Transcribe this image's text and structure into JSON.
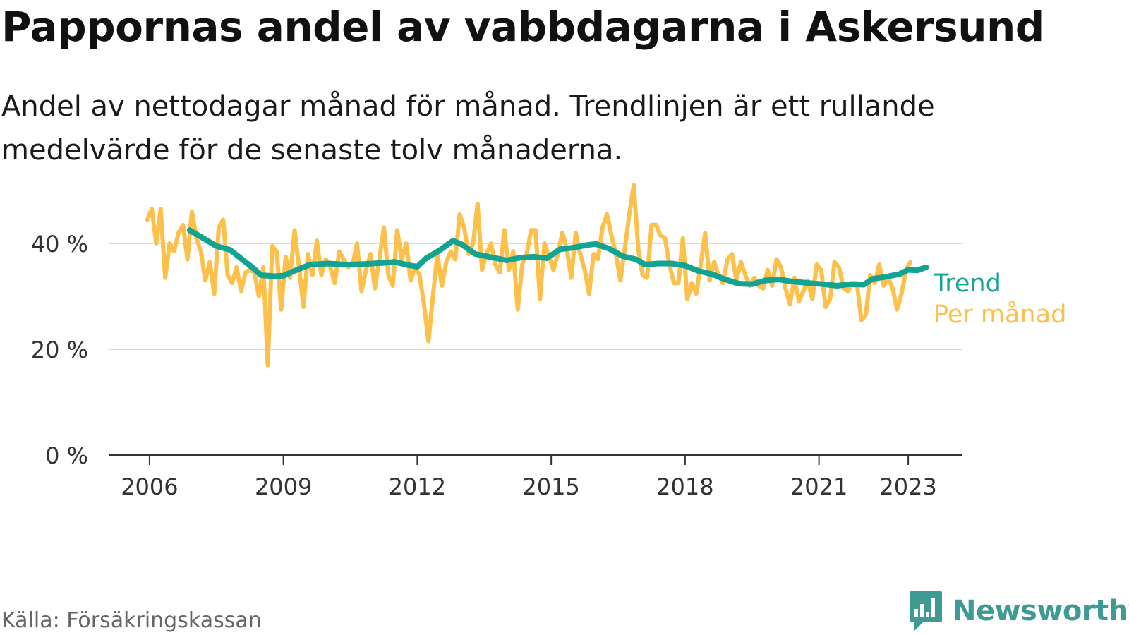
{
  "header": {
    "title": "Pappornas andel av vabbdagarna i Askersund",
    "subtitle": "Andel av nettodagar månad för månad. Trendlinjen är ett rullande medelvärde för de senaste tolv månaderna."
  },
  "footer": {
    "source": "Källa: Försäkringskassan",
    "brand": "Newsworthy",
    "brand_icon": "bar-chart-speech-bubble-icon"
  },
  "colors": {
    "trend": "#12a393",
    "monthly": "#fdc04a",
    "grid": "#d9d9d9",
    "axis": "#333333",
    "brand": "#3f9a93"
  },
  "chart_data": {
    "type": "line",
    "xlim": [
      2005.1,
      2024.2
    ],
    "ylim": [
      0,
      50
    ],
    "y_ticks": [
      {
        "value": 0,
        "label": "0 %"
      },
      {
        "value": 20,
        "label": "20 %"
      },
      {
        "value": 40,
        "label": "40 %"
      }
    ],
    "x_ticks": [
      {
        "value": 2006,
        "label": "2006"
      },
      {
        "value": 2009,
        "label": "2009"
      },
      {
        "value": 2012,
        "label": "2012"
      },
      {
        "value": 2015,
        "label": "2015"
      },
      {
        "value": 2018,
        "label": "2018"
      },
      {
        "value": 2021,
        "label": "2021"
      },
      {
        "value": 2023,
        "label": "2023"
      }
    ],
    "grid": "horizontal",
    "legend": "direct labels at right end of lines",
    "series": [
      {
        "name": "Trend",
        "key": "trend",
        "points": [
          [
            2006.9,
            42.5
          ],
          [
            2007.2,
            41.0
          ],
          [
            2007.5,
            39.5
          ],
          [
            2007.8,
            38.8
          ],
          [
            2008.0,
            37.5
          ],
          [
            2008.3,
            35.5
          ],
          [
            2008.5,
            34.0
          ],
          [
            2008.8,
            33.8
          ],
          [
            2009.0,
            33.9
          ],
          [
            2009.3,
            35.0
          ],
          [
            2009.6,
            36.0
          ],
          [
            2010.0,
            36.2
          ],
          [
            2010.4,
            36.0
          ],
          [
            2010.8,
            36.1
          ],
          [
            2011.2,
            36.3
          ],
          [
            2011.5,
            36.5
          ],
          [
            2011.8,
            35.9
          ],
          [
            2012.0,
            35.6
          ],
          [
            2012.2,
            37.2
          ],
          [
            2012.5,
            38.7
          ],
          [
            2012.8,
            40.5
          ],
          [
            2013.0,
            39.8
          ],
          [
            2013.3,
            38.0
          ],
          [
            2013.6,
            37.5
          ],
          [
            2014.0,
            36.8
          ],
          [
            2014.3,
            37.3
          ],
          [
            2014.6,
            37.5
          ],
          [
            2014.9,
            37.2
          ],
          [
            2015.2,
            38.9
          ],
          [
            2015.5,
            39.2
          ],
          [
            2015.8,
            39.7
          ],
          [
            2016.0,
            39.9
          ],
          [
            2016.3,
            39.0
          ],
          [
            2016.6,
            37.6
          ],
          [
            2016.9,
            37.0
          ],
          [
            2017.1,
            36.0
          ],
          [
            2017.4,
            36.2
          ],
          [
            2017.7,
            36.2
          ],
          [
            2018.0,
            35.8
          ],
          [
            2018.3,
            34.8
          ],
          [
            2018.6,
            34.2
          ],
          [
            2018.9,
            33.2
          ],
          [
            2019.2,
            32.4
          ],
          [
            2019.5,
            32.3
          ],
          [
            2019.8,
            33.0
          ],
          [
            2020.1,
            33.2
          ],
          [
            2020.4,
            32.8
          ],
          [
            2020.8,
            32.5
          ],
          [
            2021.1,
            32.3
          ],
          [
            2021.4,
            32.0
          ],
          [
            2021.7,
            32.3
          ],
          [
            2022.0,
            32.2
          ],
          [
            2022.2,
            33.3
          ],
          [
            2022.5,
            33.7
          ],
          [
            2022.8,
            34.2
          ],
          [
            2023.0,
            35.0
          ],
          [
            2023.2,
            34.9
          ],
          [
            2023.4,
            35.5
          ]
        ]
      },
      {
        "name": "Per månad",
        "key": "monthly",
        "points": [
          [
            2005.95,
            44.5
          ],
          [
            2006.05,
            46.5
          ],
          [
            2006.15,
            40.0
          ],
          [
            2006.25,
            46.5
          ],
          [
            2006.35,
            33.5
          ],
          [
            2006.45,
            40.0
          ],
          [
            2006.55,
            38.5
          ],
          [
            2006.65,
            42.0
          ],
          [
            2006.75,
            43.5
          ],
          [
            2006.85,
            37.0
          ],
          [
            2006.95,
            46.0
          ],
          [
            2007.05,
            41.0
          ],
          [
            2007.15,
            38.5
          ],
          [
            2007.25,
            33.0
          ],
          [
            2007.35,
            36.5
          ],
          [
            2007.45,
            30.5
          ],
          [
            2007.55,
            43.0
          ],
          [
            2007.65,
            44.5
          ],
          [
            2007.75,
            34.0
          ],
          [
            2007.85,
            32.5
          ],
          [
            2007.95,
            35.5
          ],
          [
            2008.05,
            31.0
          ],
          [
            2008.15,
            34.5
          ],
          [
            2008.25,
            35.0
          ],
          [
            2008.35,
            34.5
          ],
          [
            2008.45,
            30.0
          ],
          [
            2008.55,
            35.5
          ],
          [
            2008.65,
            17.0
          ],
          [
            2008.75,
            39.5
          ],
          [
            2008.85,
            38.5
          ],
          [
            2008.95,
            27.5
          ],
          [
            2009.05,
            37.5
          ],
          [
            2009.15,
            33.5
          ],
          [
            2009.25,
            42.5
          ],
          [
            2009.35,
            35.5
          ],
          [
            2009.45,
            28.0
          ],
          [
            2009.55,
            38.0
          ],
          [
            2009.65,
            34.0
          ],
          [
            2009.75,
            40.5
          ],
          [
            2009.85,
            34.0
          ],
          [
            2009.95,
            37.0
          ],
          [
            2010.05,
            35.5
          ],
          [
            2010.15,
            32.5
          ],
          [
            2010.25,
            38.5
          ],
          [
            2010.35,
            37.0
          ],
          [
            2010.45,
            35.5
          ],
          [
            2010.55,
            36.0
          ],
          [
            2010.65,
            40.0
          ],
          [
            2010.75,
            31.0
          ],
          [
            2010.85,
            35.0
          ],
          [
            2010.95,
            38.0
          ],
          [
            2011.05,
            31.5
          ],
          [
            2011.15,
            37.0
          ],
          [
            2011.25,
            43.0
          ],
          [
            2011.35,
            34.0
          ],
          [
            2011.45,
            32.0
          ],
          [
            2011.55,
            42.5
          ],
          [
            2011.65,
            37.0
          ],
          [
            2011.75,
            40.0
          ],
          [
            2011.85,
            33.0
          ],
          [
            2011.95,
            35.5
          ],
          [
            2012.05,
            34.0
          ],
          [
            2012.15,
            28.5
          ],
          [
            2012.25,
            21.5
          ],
          [
            2012.35,
            30.0
          ],
          [
            2012.45,
            38.0
          ],
          [
            2012.55,
            32.0
          ],
          [
            2012.65,
            36.5
          ],
          [
            2012.75,
            38.5
          ],
          [
            2012.85,
            37.0
          ],
          [
            2012.95,
            45.5
          ],
          [
            2013.05,
            43.0
          ],
          [
            2013.15,
            38.0
          ],
          [
            2013.25,
            40.0
          ],
          [
            2013.35,
            47.5
          ],
          [
            2013.45,
            35.0
          ],
          [
            2013.55,
            38.0
          ],
          [
            2013.65,
            40.0
          ],
          [
            2013.75,
            36.0
          ],
          [
            2013.85,
            34.5
          ],
          [
            2013.95,
            42.5
          ],
          [
            2014.05,
            35.0
          ],
          [
            2014.15,
            38.5
          ],
          [
            2014.25,
            27.5
          ],
          [
            2014.35,
            36.0
          ],
          [
            2014.45,
            38.0
          ],
          [
            2014.55,
            42.5
          ],
          [
            2014.65,
            42.5
          ],
          [
            2014.75,
            29.5
          ],
          [
            2014.85,
            40.0
          ],
          [
            2014.95,
            37.5
          ],
          [
            2015.05,
            35.0
          ],
          [
            2015.15,
            38.0
          ],
          [
            2015.25,
            42.0
          ],
          [
            2015.35,
            39.0
          ],
          [
            2015.45,
            33.5
          ],
          [
            2015.55,
            42.0
          ],
          [
            2015.65,
            38.0
          ],
          [
            2015.75,
            35.0
          ],
          [
            2015.85,
            30.5
          ],
          [
            2015.95,
            38.0
          ],
          [
            2016.05,
            37.0
          ],
          [
            2016.15,
            43.0
          ],
          [
            2016.25,
            45.5
          ],
          [
            2016.35,
            41.5
          ],
          [
            2016.45,
            38.0
          ],
          [
            2016.55,
            33.0
          ],
          [
            2016.65,
            39.0
          ],
          [
            2016.75,
            45.5
          ],
          [
            2016.85,
            51.0
          ],
          [
            2016.95,
            39.0
          ],
          [
            2017.05,
            34.0
          ],
          [
            2017.15,
            33.5
          ],
          [
            2017.25,
            43.5
          ],
          [
            2017.35,
            43.5
          ],
          [
            2017.45,
            41.5
          ],
          [
            2017.55,
            41.0
          ],
          [
            2017.65,
            36.0
          ],
          [
            2017.75,
            32.5
          ],
          [
            2017.85,
            32.5
          ],
          [
            2017.95,
            41.0
          ],
          [
            2018.05,
            29.5
          ],
          [
            2018.15,
            32.5
          ],
          [
            2018.25,
            30.5
          ],
          [
            2018.35,
            36.0
          ],
          [
            2018.45,
            42.0
          ],
          [
            2018.55,
            33.0
          ],
          [
            2018.65,
            36.5
          ],
          [
            2018.75,
            34.0
          ],
          [
            2018.85,
            32.5
          ],
          [
            2018.95,
            37.0
          ],
          [
            2019.05,
            38.0
          ],
          [
            2019.15,
            33.0
          ],
          [
            2019.25,
            36.5
          ],
          [
            2019.35,
            34.0
          ],
          [
            2019.45,
            32.0
          ],
          [
            2019.55,
            33.5
          ],
          [
            2019.65,
            32.0
          ],
          [
            2019.75,
            31.5
          ],
          [
            2019.85,
            35.0
          ],
          [
            2019.95,
            32.0
          ],
          [
            2020.05,
            37.0
          ],
          [
            2020.15,
            35.5
          ],
          [
            2020.25,
            31.5
          ],
          [
            2020.35,
            28.5
          ],
          [
            2020.45,
            33.5
          ],
          [
            2020.55,
            29.0
          ],
          [
            2020.65,
            31.0
          ],
          [
            2020.75,
            33.0
          ],
          [
            2020.85,
            29.5
          ],
          [
            2020.95,
            36.0
          ],
          [
            2021.05,
            35.0
          ],
          [
            2021.15,
            28.0
          ],
          [
            2021.25,
            29.5
          ],
          [
            2021.35,
            36.5
          ],
          [
            2021.45,
            35.5
          ],
          [
            2021.55,
            31.5
          ],
          [
            2021.65,
            31.0
          ],
          [
            2021.75,
            32.5
          ],
          [
            2021.85,
            32.5
          ],
          [
            2021.95,
            25.5
          ],
          [
            2022.05,
            26.5
          ],
          [
            2022.15,
            34.0
          ],
          [
            2022.25,
            32.5
          ],
          [
            2022.35,
            36.0
          ],
          [
            2022.45,
            32.0
          ],
          [
            2022.55,
            33.5
          ],
          [
            2022.65,
            31.5
          ],
          [
            2022.75,
            27.5
          ],
          [
            2022.85,
            30.5
          ],
          [
            2022.95,
            35.0
          ],
          [
            2023.05,
            36.5
          ]
        ]
      }
    ]
  }
}
